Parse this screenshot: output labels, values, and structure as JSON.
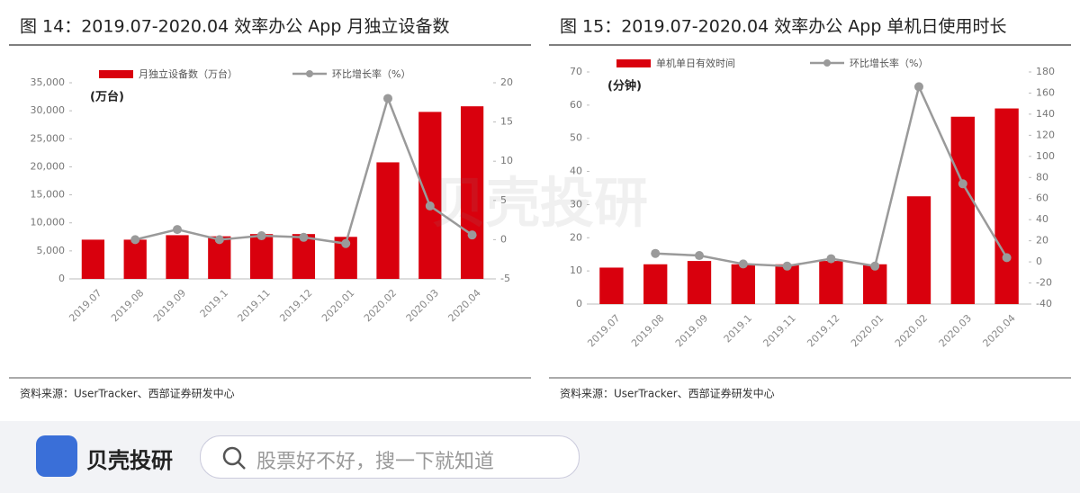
{
  "chart_data": [
    {
      "type": "bar",
      "title": "图 14：2019.07-2020.04 效率办公 App 月独立设备数",
      "unit_label": "(万台)",
      "source": "资料来源：UserTracker、西部证券研发中心",
      "categories": [
        "2019.07",
        "2019.08",
        "2019.09",
        "2019.1",
        "2019.11",
        "2019.12",
        "2020.01",
        "2020.02",
        "2020.03",
        "2020.04"
      ],
      "series": [
        {
          "name": "月独立设备数（万台）",
          "color": "#d9000d",
          "type": "bar",
          "values": [
            7000,
            7000,
            7800,
            7600,
            8000,
            8000,
            7500,
            20800,
            29800,
            30800
          ]
        },
        {
          "name": "环比增长率（%）",
          "color": "#9a9a9a",
          "type": "line",
          "axis": "y2",
          "values": [
            null,
            0,
            1.3,
            0,
            0.5,
            0.3,
            -0.5,
            18,
            4.3,
            0.6
          ]
        }
      ],
      "ylim": [
        0,
        35000
      ],
      "yticks": [
        0,
        {
          "value": 5000,
          "label": "5,000"
        },
        {
          "value": 10000,
          "label": "10,000"
        },
        {
          "value": 15000,
          "label": "15,000"
        },
        {
          "value": 20000,
          "label": "20,000"
        },
        {
          "value": 25000,
          "label": "25,000"
        },
        {
          "value": 30000,
          "label": "30,000"
        },
        {
          "value": 35000,
          "label": "35,000"
        }
      ],
      "y2lim": [
        -5,
        20
      ],
      "y2ticks": [
        -5,
        0,
        5,
        10,
        15,
        20
      ]
    },
    {
      "type": "bar",
      "title": "图 15：2019.07-2020.04 效率办公 App 单机日使用时长",
      "unit_label": "(分钟)",
      "source": "资料来源：UserTracker、西部证券研发中心",
      "categories": [
        "2019.07",
        "2019.08",
        "2019.09",
        "2019.1",
        "2019.11",
        "2019.12",
        "2020.01",
        "2020.02",
        "2020.03",
        "2020.04"
      ],
      "series": [
        {
          "name": "单机单日有效时间",
          "color": "#d9000d",
          "type": "bar",
          "values": [
            11,
            12,
            13,
            12,
            12,
            13,
            12,
            32.5,
            56.5,
            59
          ]
        },
        {
          "name": "环比增长率（%）",
          "color": "#9a9a9a",
          "type": "line",
          "axis": "y2",
          "values": [
            null,
            8,
            6,
            -2,
            -4,
            3,
            -4,
            166,
            74,
            4
          ]
        }
      ],
      "ylim": [
        0,
        70
      ],
      "yticks": [
        0,
        10,
        20,
        30,
        40,
        50,
        60,
        70
      ],
      "y2lim": [
        -40,
        180
      ],
      "y2ticks": [
        -40,
        -20,
        0,
        20,
        40,
        60,
        80,
        100,
        120,
        140,
        160,
        180
      ]
    }
  ],
  "watermark": "贝壳投研",
  "footer": {
    "brand": "贝壳投研",
    "search_placeholder": "股票好不好，搜一下就知道"
  }
}
